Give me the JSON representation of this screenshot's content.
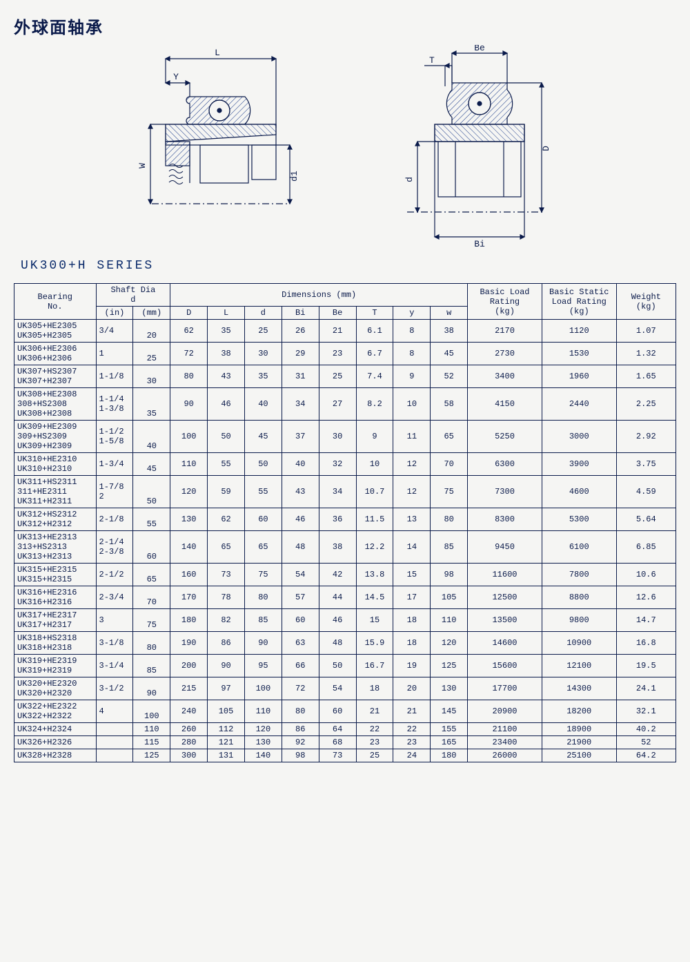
{
  "title": "外球面轴承",
  "series": "UK300+H  SERIES",
  "diagram_labels": {
    "L": "L",
    "Y": "Y",
    "W": "W",
    "d1": "d1",
    "Be": "Be",
    "T": "T",
    "d": "d",
    "D": "D",
    "Bi": "Bi"
  },
  "colors": {
    "line": "#0a1a4a",
    "text": "#0a1a4a",
    "bg": "#f5f5f3",
    "hatch": "#1a3a8a"
  },
  "table": {
    "headers": {
      "bearing": "Bearing\nNo.",
      "shaft": "Shaft Dia\nd",
      "shaft_in": "(in)",
      "shaft_mm": "(mm)",
      "dimensions": "Dimensions    (mm)",
      "D": "D",
      "L": "L",
      "d": "d",
      "Bi": "Bi",
      "Be": "Be",
      "T": "T",
      "y": "y",
      "w": "w",
      "basic_load": "Basic Load\nRating\n(kg)",
      "basic_static": "Basic Static\nLoad Rating\n(kg)",
      "weight": "Weight\n(kg)"
    },
    "rows": [
      {
        "bearing": [
          "UK305+HE2305",
          "UK305+H2305"
        ],
        "in": [
          "3/4"
        ],
        "mm": "20",
        "D": "62",
        "L": "35",
        "d": "25",
        "Bi": "26",
        "Be": "21",
        "T": "6.1",
        "y": "8",
        "w": "38",
        "bl": "2170",
        "bs": "1120",
        "wt": "1.07"
      },
      {
        "bearing": [
          "UK306+HE2306",
          "UK306+H2306"
        ],
        "in": [
          "1"
        ],
        "mm": "25",
        "D": "72",
        "L": "38",
        "d": "30",
        "Bi": "29",
        "Be": "23",
        "T": "6.7",
        "y": "8",
        "w": "45",
        "bl": "2730",
        "bs": "1530",
        "wt": "1.32"
      },
      {
        "bearing": [
          "UK307+HS2307",
          "UK307+H2307"
        ],
        "in": [
          "1-1/8"
        ],
        "mm": "30",
        "D": "80",
        "L": "43",
        "d": "35",
        "Bi": "31",
        "Be": "25",
        "T": "7.4",
        "y": "9",
        "w": "52",
        "bl": "3400",
        "bs": "1960",
        "wt": "1.65"
      },
      {
        "bearing": [
          "UK308+HE2308",
          "  308+HS2308",
          "UK308+H2308"
        ],
        "in": [
          "1-1/4",
          "1-3/8"
        ],
        "mm": "35",
        "D": "90",
        "L": "46",
        "d": "40",
        "Bi": "34",
        "Be": "27",
        "T": "8.2",
        "y": "10",
        "w": "58",
        "bl": "4150",
        "bs": "2440",
        "wt": "2.25"
      },
      {
        "bearing": [
          "UK309+HE2309",
          "  309+HS2309",
          "UK309+H2309"
        ],
        "in": [
          "1-1/2",
          "1-5/8"
        ],
        "mm": "40",
        "D": "100",
        "L": "50",
        "d": "45",
        "Bi": "37",
        "Be": "30",
        "T": "9",
        "y": "11",
        "w": "65",
        "bl": "5250",
        "bs": "3000",
        "wt": "2.92"
      },
      {
        "bearing": [
          "UK310+HE2310",
          "UK310+H2310"
        ],
        "in": [
          "1-3/4"
        ],
        "mm": "45",
        "D": "110",
        "L": "55",
        "d": "50",
        "Bi": "40",
        "Be": "32",
        "T": "10",
        "y": "12",
        "w": "70",
        "bl": "6300",
        "bs": "3900",
        "wt": "3.75"
      },
      {
        "bearing": [
          "UK311+HS2311",
          "  311+HE2311",
          "UK311+H2311"
        ],
        "in": [
          "1-7/8",
          "2"
        ],
        "mm": "50",
        "D": "120",
        "L": "59",
        "d": "55",
        "Bi": "43",
        "Be": "34",
        "T": "10.7",
        "y": "12",
        "w": "75",
        "bl": "7300",
        "bs": "4600",
        "wt": "4.59"
      },
      {
        "bearing": [
          "UK312+HS2312",
          "UK312+H2312"
        ],
        "in": [
          "2-1/8"
        ],
        "mm": "55",
        "D": "130",
        "L": "62",
        "d": "60",
        "Bi": "46",
        "Be": "36",
        "T": "11.5",
        "y": "13",
        "w": "80",
        "bl": "8300",
        "bs": "5300",
        "wt": "5.64"
      },
      {
        "bearing": [
          "UK313+HE2313",
          "  313+HS2313",
          "UK313+H2313"
        ],
        "in": [
          "2-1/4",
          "2-3/8"
        ],
        "mm": "60",
        "D": "140",
        "L": "65",
        "d": "65",
        "Bi": "48",
        "Be": "38",
        "T": "12.2",
        "y": "14",
        "w": "85",
        "bl": "9450",
        "bs": "6100",
        "wt": "6.85"
      },
      {
        "bearing": [
          "UK315+HE2315",
          "UK315+H2315"
        ],
        "in": [
          "2-1/2"
        ],
        "mm": "65",
        "D": "160",
        "L": "73",
        "d": "75",
        "Bi": "54",
        "Be": "42",
        "T": "13.8",
        "y": "15",
        "w": "98",
        "bl": "11600",
        "bs": "7800",
        "wt": "10.6"
      },
      {
        "bearing": [
          "UK316+HE2316",
          "UK316+H2316"
        ],
        "in": [
          "2-3/4"
        ],
        "mm": "70",
        "D": "170",
        "L": "78",
        "d": "80",
        "Bi": "57",
        "Be": "44",
        "T": "14.5",
        "y": "17",
        "w": "105",
        "bl": "12500",
        "bs": "8800",
        "wt": "12.6"
      },
      {
        "bearing": [
          "UK317+HE2317",
          "UK317+H2317"
        ],
        "in": [
          "3"
        ],
        "mm": "75",
        "D": "180",
        "L": "82",
        "d": "85",
        "Bi": "60",
        "Be": "46",
        "T": "15",
        "y": "18",
        "w": "110",
        "bl": "13500",
        "bs": "9800",
        "wt": "14.7"
      },
      {
        "bearing": [
          "UK318+HS2318",
          "UK318+H2318"
        ],
        "in": [
          "3-1/8"
        ],
        "mm": "80",
        "D": "190",
        "L": "86",
        "d": "90",
        "Bi": "63",
        "Be": "48",
        "T": "15.9",
        "y": "18",
        "w": "120",
        "bl": "14600",
        "bs": "10900",
        "wt": "16.8"
      },
      {
        "bearing": [
          "UK319+HE2319",
          "UK319+H2319"
        ],
        "in": [
          "3-1/4"
        ],
        "mm": "85",
        "D": "200",
        "L": "90",
        "d": "95",
        "Bi": "66",
        "Be": "50",
        "T": "16.7",
        "y": "19",
        "w": "125",
        "bl": "15600",
        "bs": "12100",
        "wt": "19.5"
      },
      {
        "bearing": [
          "UK320+HE2320",
          "UK320+H2320"
        ],
        "in": [
          "3-1/2"
        ],
        "mm": "90",
        "D": "215",
        "L": "97",
        "d": "100",
        "Bi": "72",
        "Be": "54",
        "T": "18",
        "y": "20",
        "w": "130",
        "bl": "17700",
        "bs": "14300",
        "wt": "24.1"
      },
      {
        "bearing": [
          "UK322+HE2322",
          "UK322+H2322"
        ],
        "in": [
          "4"
        ],
        "mm": "100",
        "D": "240",
        "L": "105",
        "d": "110",
        "Bi": "80",
        "Be": "60",
        "T": "21",
        "y": "21",
        "w": "145",
        "bl": "20900",
        "bs": "18200",
        "wt": "32.1"
      },
      {
        "bearing": [
          "UK324+H2324"
        ],
        "in": [
          ""
        ],
        "mm": "110",
        "D": "260",
        "L": "112",
        "d": "120",
        "Bi": "86",
        "Be": "64",
        "T": "22",
        "y": "22",
        "w": "155",
        "bl": "21100",
        "bs": "18900",
        "wt": "40.2"
      },
      {
        "bearing": [
          "UK326+H2326"
        ],
        "in": [
          ""
        ],
        "mm": "115",
        "D": "280",
        "L": "121",
        "d": "130",
        "Bi": "92",
        "Be": "68",
        "T": "23",
        "y": "23",
        "w": "165",
        "bl": "23400",
        "bs": "21900",
        "wt": "52"
      },
      {
        "bearing": [
          "UK328+H2328"
        ],
        "in": [
          ""
        ],
        "mm": "125",
        "D": "300",
        "L": "131",
        "d": "140",
        "Bi": "98",
        "Be": "73",
        "T": "25",
        "y": "24",
        "w": "180",
        "bl": "26000",
        "bs": "25100",
        "wt": "64.2"
      }
    ],
    "col_widths_pct": [
      11,
      5,
      5,
      5,
      5,
      5,
      5,
      5,
      5,
      5,
      5,
      10,
      10,
      8
    ]
  }
}
